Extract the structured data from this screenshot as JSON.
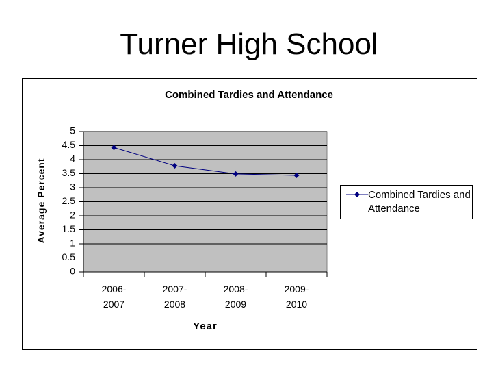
{
  "page_title": "Turner High School",
  "chart_data": {
    "type": "line",
    "title": "Combined Tardies and Attendance",
    "x_label": "Year",
    "y_label": "Average Percent",
    "categories": [
      "2006-2007",
      "2007-2008",
      "2008-2009",
      "2009-2010"
    ],
    "series": [
      {
        "name": "Combined Tardies and Attendance",
        "color": "#000080",
        "values": [
          4.43,
          3.78,
          3.49,
          3.44
        ]
      }
    ],
    "ylim": [
      0,
      5
    ],
    "yticks": [
      0,
      0.5,
      1,
      1.5,
      2,
      2.5,
      3,
      3.5,
      4,
      4.5,
      5
    ],
    "grid": true,
    "legend": "right",
    "plot_background": "#c0c0c0"
  }
}
